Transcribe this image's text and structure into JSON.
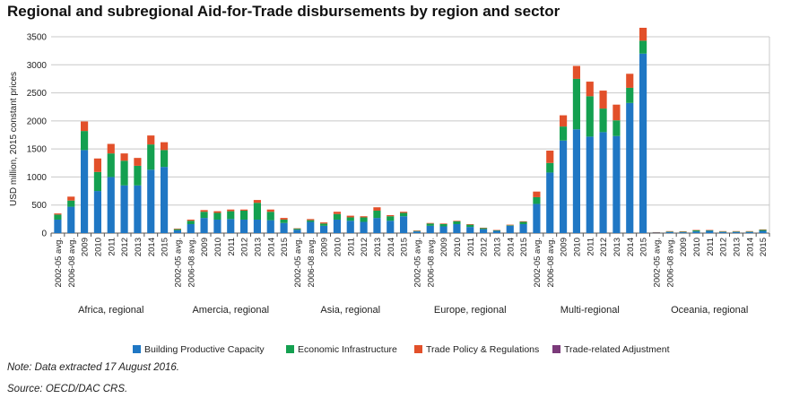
{
  "title": "Regional and subregional Aid-for-Trade disbursements by region and sector",
  "note": "Note: Data extracted 17 August 2016.",
  "source": "Source: OECD/DAC CRS.",
  "chart_data": {
    "type": "bar",
    "stacked": true,
    "ylabel": "USD million, 2015 constant prices",
    "ylim": [
      0,
      3500
    ],
    "yticks": [
      "0",
      "500",
      "1000",
      "1500",
      "2000",
      "2500",
      "3000",
      "3500"
    ],
    "grid": true,
    "legend_position": "bottom",
    "categories": [
      "2002-05 avg.",
      "2006-08 avg.",
      "2009",
      "2010",
      "2011",
      "2012",
      "2013",
      "2014",
      "2015"
    ],
    "groups": [
      "Africa, regional",
      "Amercia,  regional",
      "Asia, regional",
      "Europe, regional",
      "Multi-regional",
      "Oceania,  regional"
    ],
    "series": [
      {
        "name": "Building Productive Capacity",
        "color": "#1f77c4",
        "values": [
          [
            240,
            470,
            1480,
            750,
            1000,
            850,
            850,
            1130,
            1180
          ],
          [
            50,
            160,
            270,
            240,
            250,
            240,
            240,
            230,
            180
          ],
          [
            60,
            200,
            130,
            240,
            220,
            200,
            270,
            220,
            300
          ],
          [
            30,
            130,
            120,
            160,
            110,
            70,
            40,
            130,
            160
          ],
          [
            520,
            1080,
            1650,
            1850,
            1720,
            1800,
            1730,
            2320,
            3200
          ],
          [
            10,
            20,
            15,
            30,
            40,
            20,
            20,
            20,
            40
          ]
        ]
      },
      {
        "name": "Economic Infrastructure",
        "color": "#14a050",
        "values": [
          [
            90,
            110,
            340,
            340,
            420,
            440,
            350,
            450,
            300
          ],
          [
            20,
            60,
            110,
            120,
            140,
            160,
            300,
            150,
            60
          ],
          [
            20,
            30,
            40,
            100,
            60,
            80,
            130,
            80,
            60
          ],
          [
            10,
            40,
            40,
            50,
            40,
            20,
            10,
            10,
            40
          ],
          [
            120,
            170,
            250,
            900,
            720,
            420,
            280,
            270,
            230
          ],
          [
            5,
            10,
            10,
            20,
            10,
            10,
            10,
            10,
            20
          ]
        ]
      },
      {
        "name": "Trade Policy & Regulations",
        "color": "#e2502a",
        "values": [
          [
            20,
            70,
            170,
            240,
            170,
            130,
            140,
            160,
            140
          ],
          [
            10,
            20,
            30,
            30,
            30,
            20,
            50,
            40,
            30
          ],
          [
            5,
            20,
            20,
            40,
            30,
            20,
            60,
            20,
            20
          ],
          [
            5,
            10,
            10,
            10,
            10,
            5,
            5,
            10,
            10
          ],
          [
            100,
            220,
            200,
            230,
            260,
            320,
            280,
            250,
            230
          ],
          [
            2,
            5,
            5,
            5,
            5,
            5,
            5,
            5,
            5
          ]
        ]
      },
      {
        "name": "Trade-related Adjustment",
        "color": "#7b3a7a",
        "values": [
          [
            0,
            0,
            0,
            0,
            0,
            0,
            0,
            0,
            0
          ],
          [
            0,
            0,
            0,
            0,
            0,
            0,
            0,
            0,
            0
          ],
          [
            0,
            0,
            0,
            0,
            0,
            0,
            0,
            0,
            0
          ],
          [
            0,
            0,
            0,
            0,
            0,
            0,
            0,
            0,
            0
          ],
          [
            0,
            0,
            0,
            0,
            0,
            0,
            0,
            0,
            0
          ],
          [
            0,
            0,
            0,
            0,
            0,
            0,
            0,
            0,
            0
          ]
        ]
      }
    ]
  }
}
